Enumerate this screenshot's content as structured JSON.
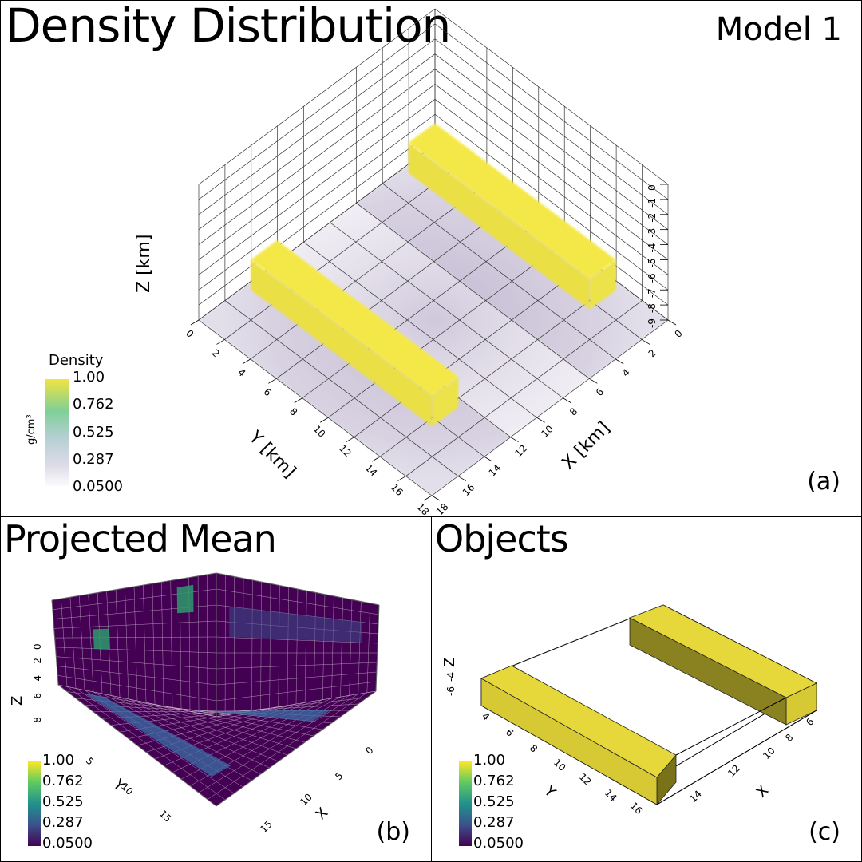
{
  "panel_a": {
    "title": "Density Distribution",
    "model_label": "Model 1",
    "panel_letter": "(a)"
  },
  "panel_b": {
    "title": "Projected Mean",
    "panel_letter": "(b)"
  },
  "panel_c": {
    "title": "Objects",
    "panel_letter": "(c)"
  },
  "chart_data": [
    {
      "type": "heatmap",
      "subtype": "3d-volume",
      "xlabel": "X [km]",
      "ylabel": "Y [km]",
      "zlabel": "Z [km]",
      "x_ticks": [
        "0",
        "2",
        "4",
        "6",
        "8",
        "10",
        "12",
        "14",
        "16",
        "18"
      ],
      "y_ticks": [
        "0",
        "2",
        "4",
        "6",
        "8",
        "10",
        "12",
        "14",
        "16",
        "18"
      ],
      "z_ticks": [
        "-9",
        "-8",
        "-7",
        "-6",
        "-5",
        "-4",
        "-3",
        "-2",
        "-1",
        "0"
      ],
      "xlim": [
        0,
        18
      ],
      "ylim": [
        0,
        18
      ],
      "zlim": [
        -9,
        0
      ],
      "grid": true,
      "colorbar": {
        "title": "Density",
        "unit": "g/cm³",
        "ticks": [
          "1.00",
          "0.762",
          "0.525",
          "0.287",
          "0.0500"
        ],
        "range": [
          0.05,
          1.0
        ]
      },
      "objects": [
        {
          "x_range": [
            2,
            4
          ],
          "y_range": [
            2,
            16
          ],
          "z_range": [
            -7,
            -5
          ],
          "density": 1.0
        },
        {
          "x_range": [
            14,
            16
          ],
          "y_range": [
            2,
            16
          ],
          "z_range": [
            -7,
            -5
          ],
          "density": 1.0
        }
      ],
      "colors": {
        "high": "#f4e84a",
        "low": "#f5f3f8"
      }
    },
    {
      "type": "heatmap",
      "subtype": "3d-projected-mean",
      "xlabel": "X",
      "ylabel": "Y",
      "zlabel": "Z",
      "x_ticks": [
        "0",
        "5",
        "10",
        "15"
      ],
      "y_ticks": [
        "5",
        "10",
        "15"
      ],
      "z_ticks": [
        "-8",
        "-6",
        "-4",
        "-2",
        "0"
      ],
      "colorbar": {
        "ticks": [
          "1.00",
          "0.762",
          "0.525",
          "0.287",
          "0.0500"
        ],
        "range": [
          0.05,
          1.0
        ]
      },
      "colors": {
        "background": "#440154",
        "projected_objects": "#3b6ea5",
        "side_patch": "#2d9a6d"
      }
    },
    {
      "type": "heatmap",
      "subtype": "3d-objects",
      "xlabel": "X",
      "ylabel": "Y",
      "zlabel": "Z",
      "x_ticks": [
        "6",
        "8",
        "10",
        "12",
        "14"
      ],
      "y_ticks": [
        "4",
        "6",
        "8",
        "10",
        "12",
        "14",
        "16"
      ],
      "z_ticks": [
        "-6",
        "-4"
      ],
      "colorbar": {
        "ticks": [
          "1.00",
          "0.762",
          "0.525",
          "0.287",
          "0.0500"
        ],
        "range": [
          0.05,
          1.0
        ]
      },
      "colors": {
        "object": "#e6d83a"
      }
    }
  ]
}
